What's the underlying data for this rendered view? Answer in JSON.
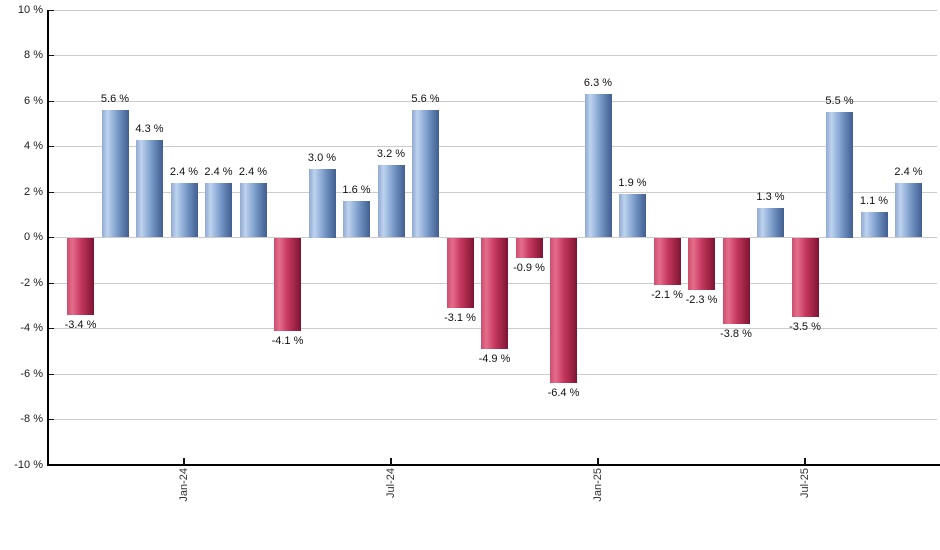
{
  "chart_data": {
    "type": "bar",
    "title": "",
    "xlabel": "",
    "ylabel": "",
    "grid": true,
    "legend": false,
    "ylim": [
      -10,
      10
    ],
    "ytick_step": 2,
    "ytick_values": [
      10,
      8,
      6,
      4,
      2,
      0,
      -2,
      -4,
      -6,
      -8,
      -10
    ],
    "ytick_labels": [
      "10 %",
      "8 %",
      "6 %",
      "4 %",
      "2 %",
      "0 %",
      "-2 %",
      "-4 %",
      "-6 %",
      "-8 %",
      "-10 %"
    ],
    "xtick_labels": [
      {
        "label": "Jan-24",
        "bar_index": 3
      },
      {
        "label": "Jul-24",
        "bar_index": 9
      },
      {
        "label": "Jan-25",
        "bar_index": 15
      },
      {
        "label": "Jul-25",
        "bar_index": 21
      }
    ],
    "values": [
      -3.4,
      5.6,
      4.3,
      2.4,
      2.4,
      2.4,
      -4.1,
      3.0,
      1.6,
      3.2,
      5.6,
      -3.1,
      -4.9,
      -0.9,
      -6.4,
      6.3,
      1.9,
      -2.1,
      -2.3,
      -3.8,
      1.3,
      -3.5,
      5.5,
      1.1,
      2.4
    ],
    "data_labels": [
      "-3.4 %",
      "5.6 %",
      "4.3 %",
      "2.4 %",
      "2.4 %",
      "2.4 %",
      "-4.1 %",
      "3.0 %",
      "1.6 %",
      "3.2 %",
      "5.6 %",
      "-3.1 %",
      "-4.9 %",
      "-0.9 %",
      "-6.4 %",
      "6.3 %",
      "1.9 %",
      "-2.1 %",
      "-2.3 %",
      "-3.8 %",
      "1.3 %",
      "-3.5 %",
      "5.5 %",
      "1.1 %",
      "2.4 %"
    ],
    "colors": {
      "positive_gradient": [
        {
          "color": "#8fa9d2",
          "pos": 0
        },
        {
          "color": "#bed3ef",
          "pos": 20
        },
        {
          "color": "#8fadd6",
          "pos": 45
        },
        {
          "color": "#6688b8",
          "pos": 70
        },
        {
          "color": "#415e90",
          "pos": 100
        }
      ],
      "negative_gradient": [
        {
          "color": "#ca4e6c",
          "pos": 0
        },
        {
          "color": "#e56d8c",
          "pos": 20
        },
        {
          "color": "#c63a60",
          "pos": 50
        },
        {
          "color": "#a42648",
          "pos": 75
        },
        {
          "color": "#7c1434",
          "pos": 100
        }
      ],
      "gridline": "#cccccc",
      "axis": "#000000",
      "label_color": "#111111",
      "background": "#ffffff"
    }
  }
}
